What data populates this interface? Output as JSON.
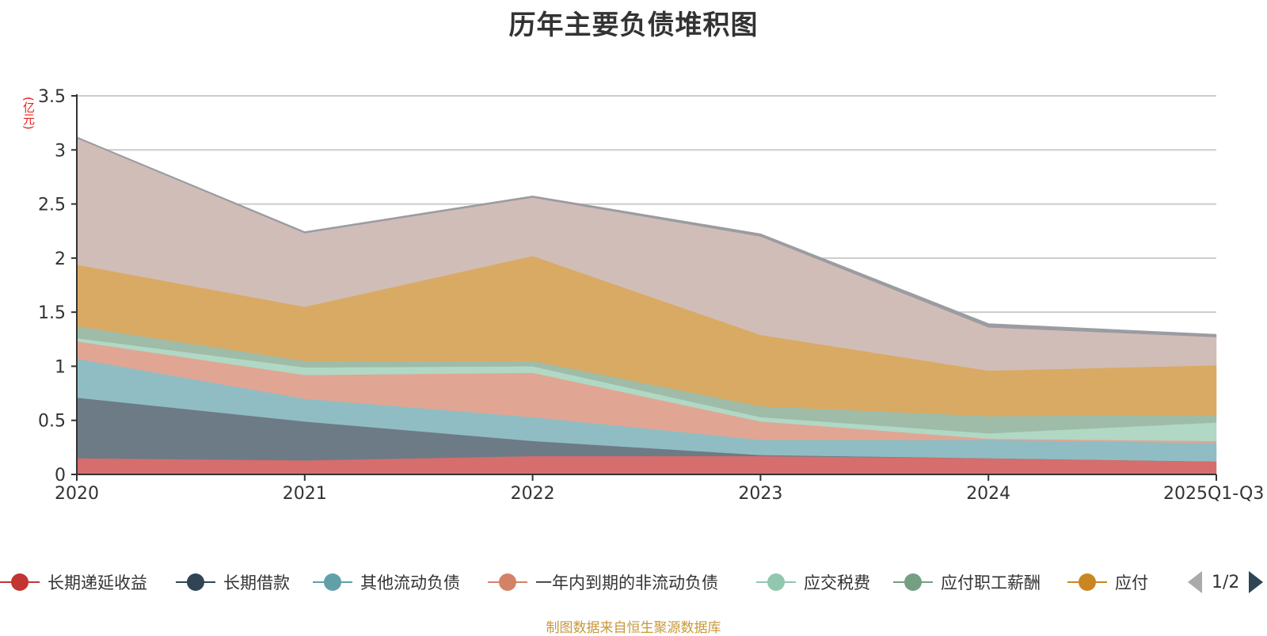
{
  "title": "历年主要负债堆积图",
  "source_note": "制图数据来自恒生聚源数据库",
  "legend_pager": {
    "text": "1/2",
    "prev_icon": "triangle-left-icon",
    "next_icon": "triangle-right-icon"
  },
  "chart_data": {
    "type": "area",
    "stacked": true,
    "title": "历年主要负债堆积图",
    "xlabel": "",
    "ylabel": "(亿元)",
    "ylim": [
      0,
      3.5
    ],
    "yticks": [
      "0",
      "0.5",
      "1",
      "1.5",
      "2",
      "2.5",
      "3",
      "3.5"
    ],
    "ytick_values": [
      0,
      0.5,
      1,
      1.5,
      2,
      2.5,
      3,
      3.5
    ],
    "grid": true,
    "legend_position": "bottom",
    "categories": [
      "2020",
      "2021",
      "2022",
      "2023",
      "2024",
      "2025Q1-Q3"
    ],
    "series": [
      {
        "name": "长期递延收益",
        "color": "#c23531",
        "fill": "#d56e6c",
        "values": [
          0.15,
          0.13,
          0.17,
          0.17,
          0.15,
          0.12
        ],
        "legend": true
      },
      {
        "name": "长期借款",
        "color": "#2f4554",
        "fill": "#6d7b86",
        "values": [
          0.56,
          0.36,
          0.14,
          0.01,
          0.0,
          0.0
        ],
        "legend": true
      },
      {
        "name": "其他流动负债",
        "color": "#61a0a8",
        "fill": "#90bdc3",
        "values": [
          0.36,
          0.21,
          0.22,
          0.14,
          0.17,
          0.17
        ],
        "legend": true
      },
      {
        "name": "一年内到期的非流动负债",
        "color": "#d48265",
        "fill": "#e0a693",
        "values": [
          0.16,
          0.22,
          0.41,
          0.17,
          0.01,
          0.02
        ],
        "legend": true
      },
      {
        "name": "应交税费",
        "color": "#91c7ae",
        "fill": "#b0d8c5",
        "values": [
          0.03,
          0.07,
          0.06,
          0.04,
          0.05,
          0.17
        ],
        "legend": true
      },
      {
        "name": "应付职工薪酬",
        "color": "#749f83",
        "fill": "#9ebca8",
        "values": [
          0.11,
          0.06,
          0.05,
          0.1,
          0.16,
          0.07
        ],
        "legend": true
      },
      {
        "name": "应付",
        "color": "#ca8622",
        "fill": "#d9aa63",
        "values": [
          0.57,
          0.5,
          0.97,
          0.66,
          0.42,
          0.46
        ],
        "legend": true
      },
      {
        "name": "",
        "color": "#bda29a",
        "fill": "#d1bdb7",
        "values": [
          1.17,
          0.68,
          0.54,
          0.91,
          0.4,
          0.26
        ],
        "legend": false
      },
      {
        "name": "",
        "color": "#6e7074",
        "fill": "#9a9ca1",
        "values": [
          0.005,
          0.01,
          0.01,
          0.02,
          0.03,
          0.02
        ],
        "legend": false
      }
    ]
  }
}
